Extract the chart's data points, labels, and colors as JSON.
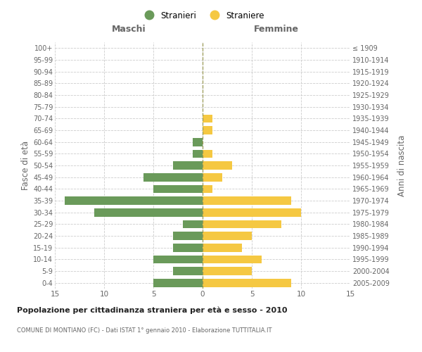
{
  "age_groups": [
    "0-4",
    "5-9",
    "10-14",
    "15-19",
    "20-24",
    "25-29",
    "30-34",
    "35-39",
    "40-44",
    "45-49",
    "50-54",
    "55-59",
    "60-64",
    "65-69",
    "70-74",
    "75-79",
    "80-84",
    "85-89",
    "90-94",
    "95-99",
    "100+"
  ],
  "birth_years": [
    "2005-2009",
    "2000-2004",
    "1995-1999",
    "1990-1994",
    "1985-1989",
    "1980-1984",
    "1975-1979",
    "1970-1974",
    "1965-1969",
    "1960-1964",
    "1955-1959",
    "1950-1954",
    "1945-1949",
    "1940-1944",
    "1935-1939",
    "1930-1934",
    "1925-1929",
    "1920-1924",
    "1915-1919",
    "1910-1914",
    "≤ 1909"
  ],
  "maschi": [
    5,
    3,
    5,
    3,
    3,
    2,
    11,
    14,
    5,
    6,
    3,
    1,
    1,
    0,
    0,
    0,
    0,
    0,
    0,
    0,
    0
  ],
  "femmine": [
    9,
    5,
    6,
    4,
    5,
    8,
    10,
    9,
    1,
    2,
    3,
    1,
    0,
    1,
    1,
    0,
    0,
    0,
    0,
    0,
    0
  ],
  "maschi_color": "#6a9a5a",
  "femmine_color": "#f5c842",
  "title": "Popolazione per cittadinanza straniera per età e sesso - 2010",
  "subtitle": "COMUNE DI MONTIANO (FC) - Dati ISTAT 1° gennaio 2010 - Elaborazione TUTTITALIA.IT",
  "ylabel_left": "Fasce di età",
  "ylabel_right": "Anni di nascita",
  "xlabel_maschi": "Maschi",
  "xlabel_femmine": "Femmine",
  "legend_stranieri": "Stranieri",
  "legend_straniere": "Straniere",
  "xlim": 15,
  "bg_color": "#ffffff",
  "grid_color": "#cccccc",
  "text_color": "#666666"
}
